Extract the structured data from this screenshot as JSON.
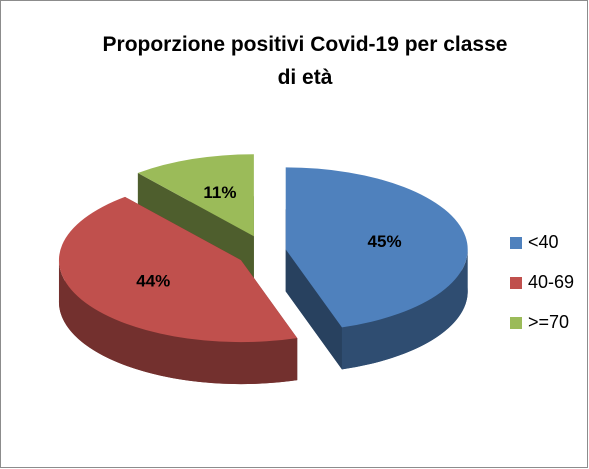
{
  "chart_data": {
    "type": "pie",
    "title": "Proporzione positivi Covid-19 per classe di età",
    "categories": [
      "<40",
      "40-69",
      ">=70"
    ],
    "values": [
      45,
      44,
      11
    ],
    "value_labels": [
      "45%",
      "44%",
      "11%"
    ],
    "colors": [
      "#4f81bd",
      "#c0504d",
      "#9bbb59"
    ],
    "legend": "right"
  }
}
